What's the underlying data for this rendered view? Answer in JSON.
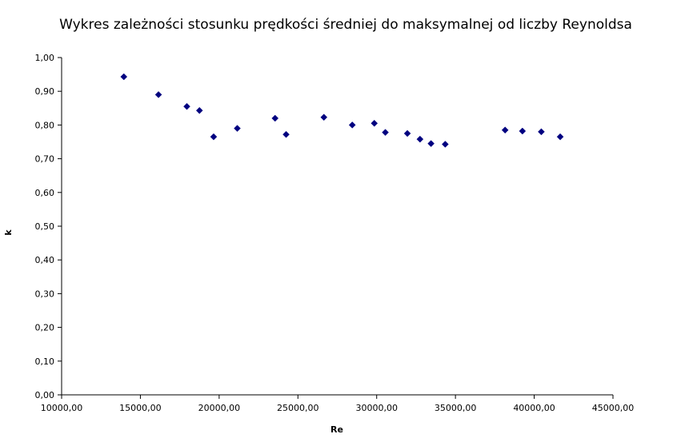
{
  "chart_data": {
    "type": "scatter",
    "title": "Wykres zależności stosunku prędkości średniej do maksymalnej od liczby Reynoldsa",
    "xlabel": "Re",
    "ylabel": "k",
    "xlim": [
      10000,
      45000
    ],
    "ylim": [
      0,
      1
    ],
    "x_ticks": [
      "10000,00",
      "15000,00",
      "20000,00",
      "25000,00",
      "30000,00",
      "35000,00",
      "40000,00",
      "45000,00"
    ],
    "y_ticks": [
      "0,00",
      "0,10",
      "0,20",
      "0,30",
      "0,40",
      "0,50",
      "0,60",
      "0,70",
      "0,80",
      "0,90",
      "1,00"
    ],
    "grid": false,
    "legend": "none",
    "marker": "diamond",
    "marker_color": "#000080",
    "points": [
      {
        "x": 13950,
        "y": 0.943
      },
      {
        "x": 16150,
        "y": 0.89
      },
      {
        "x": 17950,
        "y": 0.855
      },
      {
        "x": 18750,
        "y": 0.843
      },
      {
        "x": 19650,
        "y": 0.765
      },
      {
        "x": 21150,
        "y": 0.79
      },
      {
        "x": 23550,
        "y": 0.82
      },
      {
        "x": 24250,
        "y": 0.772
      },
      {
        "x": 26650,
        "y": 0.823
      },
      {
        "x": 28450,
        "y": 0.8
      },
      {
        "x": 29850,
        "y": 0.805
      },
      {
        "x": 30550,
        "y": 0.778
      },
      {
        "x": 31950,
        "y": 0.775
      },
      {
        "x": 32750,
        "y": 0.758
      },
      {
        "x": 33450,
        "y": 0.745
      },
      {
        "x": 34350,
        "y": 0.743
      },
      {
        "x": 38150,
        "y": 0.785
      },
      {
        "x": 39250,
        "y": 0.782
      },
      {
        "x": 40450,
        "y": 0.78
      },
      {
        "x": 41650,
        "y": 0.765
      }
    ]
  }
}
